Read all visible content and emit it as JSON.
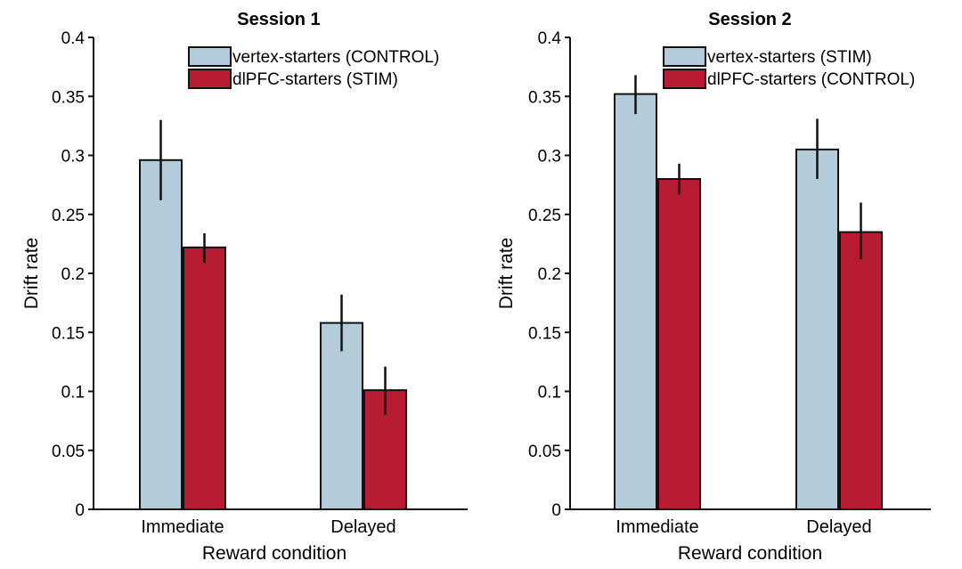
{
  "chart_data": [
    {
      "type": "bar",
      "title": "Session 1",
      "xlabel": "Reward condition",
      "ylabel": "Drift rate",
      "categories": [
        "Immediate",
        "Delayed"
      ],
      "ylim": [
        0,
        0.4
      ],
      "yticks": [
        0,
        0.05,
        0.1,
        0.15,
        0.2,
        0.25,
        0.3,
        0.35,
        0.4
      ],
      "ytick_labels": [
        "0",
        "0.05",
        "0.1",
        "0.15",
        "0.2",
        "0.25",
        "0.3",
        "0.35",
        "0.4"
      ],
      "legend_position": "top-right",
      "series": [
        {
          "name": "vertex-starters (CONTROL)",
          "color": "#b4ccd9",
          "values": [
            0.296,
            0.158
          ],
          "err_low": [
            0.262,
            0.134
          ],
          "err_high": [
            0.33,
            0.182
          ]
        },
        {
          "name": "dlPFC-starters (STIM)",
          "color": "#b71c32",
          "values": [
            0.222,
            0.101
          ],
          "err_low": [
            0.209,
            0.08
          ],
          "err_high": [
            0.234,
            0.121
          ]
        }
      ]
    },
    {
      "type": "bar",
      "title": "Session 2",
      "xlabel": "Reward condition",
      "ylabel": "Drift rate",
      "categories": [
        "Immediate",
        "Delayed"
      ],
      "ylim": [
        0,
        0.4
      ],
      "yticks": [
        0,
        0.05,
        0.1,
        0.15,
        0.2,
        0.25,
        0.3,
        0.35,
        0.4
      ],
      "ytick_labels": [
        "0",
        "0.05",
        "0.1",
        "0.15",
        "0.2",
        "0.25",
        "0.3",
        "0.35",
        "0.4"
      ],
      "legend_position": "top-right",
      "series": [
        {
          "name": "vertex-starters (STIM)",
          "color": "#b4ccd9",
          "values": [
            0.352,
            0.305
          ],
          "err_low": [
            0.335,
            0.28
          ],
          "err_high": [
            0.368,
            0.331
          ]
        },
        {
          "name": "dlPFC-starters (CONTROL)",
          "color": "#b71c32",
          "values": [
            0.28,
            0.235
          ],
          "err_low": [
            0.267,
            0.212
          ],
          "err_high": [
            0.293,
            0.26
          ]
        }
      ]
    }
  ]
}
